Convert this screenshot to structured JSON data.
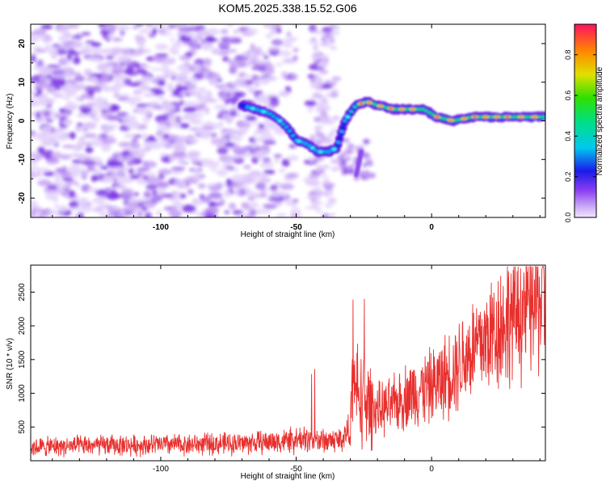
{
  "title": "KOM5.2025.338.15.52.G06",
  "chart_data": [
    {
      "type": "heatmap",
      "xlabel": "Height of straight line (km)",
      "ylabel": "Frequency (Hz)",
      "xlim": [
        -148,
        42
      ],
      "ylim": [
        -25,
        25
      ],
      "xticks": [
        -100,
        -50,
        0
      ],
      "yticks": [
        -20,
        -10,
        0,
        10,
        20
      ],
      "colorbar_label": "Normalized spectral amplitude",
      "colorbar_range": [
        0.0,
        0.95
      ],
      "colorbar_ticks": [
        0.0,
        0.2,
        0.4,
        0.6,
        0.8
      ],
      "ridge": [
        {
          "x": -70,
          "y": 4
        },
        {
          "x": -65,
          "y": 3
        },
        {
          "x": -60,
          "y": 2
        },
        {
          "x": -56,
          "y": 0
        },
        {
          "x": -53,
          "y": -2
        },
        {
          "x": -50,
          "y": -5
        },
        {
          "x": -46,
          "y": -6
        },
        {
          "x": -42,
          "y": -8
        },
        {
          "x": -38,
          "y": -8
        },
        {
          "x": -35,
          "y": -7
        },
        {
          "x": -32,
          "y": 0
        },
        {
          "x": -28,
          "y": 4
        },
        {
          "x": -24,
          "y": 5
        },
        {
          "x": -20,
          "y": 4
        },
        {
          "x": -14,
          "y": 3
        },
        {
          "x": -8,
          "y": 3
        },
        {
          "x": -3,
          "y": 3
        },
        {
          "x": 2,
          "y": 1
        },
        {
          "x": 8,
          "y": 0
        },
        {
          "x": 15,
          "y": 1
        },
        {
          "x": 25,
          "y": 1
        },
        {
          "x": 35,
          "y": 1
        },
        {
          "x": 42,
          "y": 1
        }
      ]
    },
    {
      "type": "line",
      "xlabel": "Height of straight line (km)",
      "ylabel": "SNR (10 * v/v)",
      "xlim": [
        -148,
        42
      ],
      "ylim": [
        0,
        2900
      ],
      "xticks": [
        -100,
        -50,
        0
      ],
      "yticks": [
        500,
        1000,
        1500,
        2000,
        2500
      ],
      "series": [
        {
          "name": "SNR",
          "color": "#e8302e",
          "x": [
            -148,
            -140,
            -130,
            -120,
            -110,
            -100,
            -90,
            -80,
            -70,
            -60,
            -52,
            -46,
            -42,
            -38,
            -33,
            -30,
            -29,
            -26,
            -20,
            -15,
            -10,
            -5,
            0,
            5,
            10,
            15,
            20,
            25,
            30,
            35,
            40,
            42
          ],
          "base": [
            200,
            210,
            220,
            230,
            230,
            240,
            240,
            250,
            260,
            280,
            300,
            320,
            300,
            300,
            320,
            500,
            1100,
            950,
            750,
            800,
            950,
            1050,
            1100,
            1250,
            1450,
            1650,
            1800,
            2000,
            2150,
            2300,
            2400,
            2450
          ]
        }
      ]
    }
  ]
}
